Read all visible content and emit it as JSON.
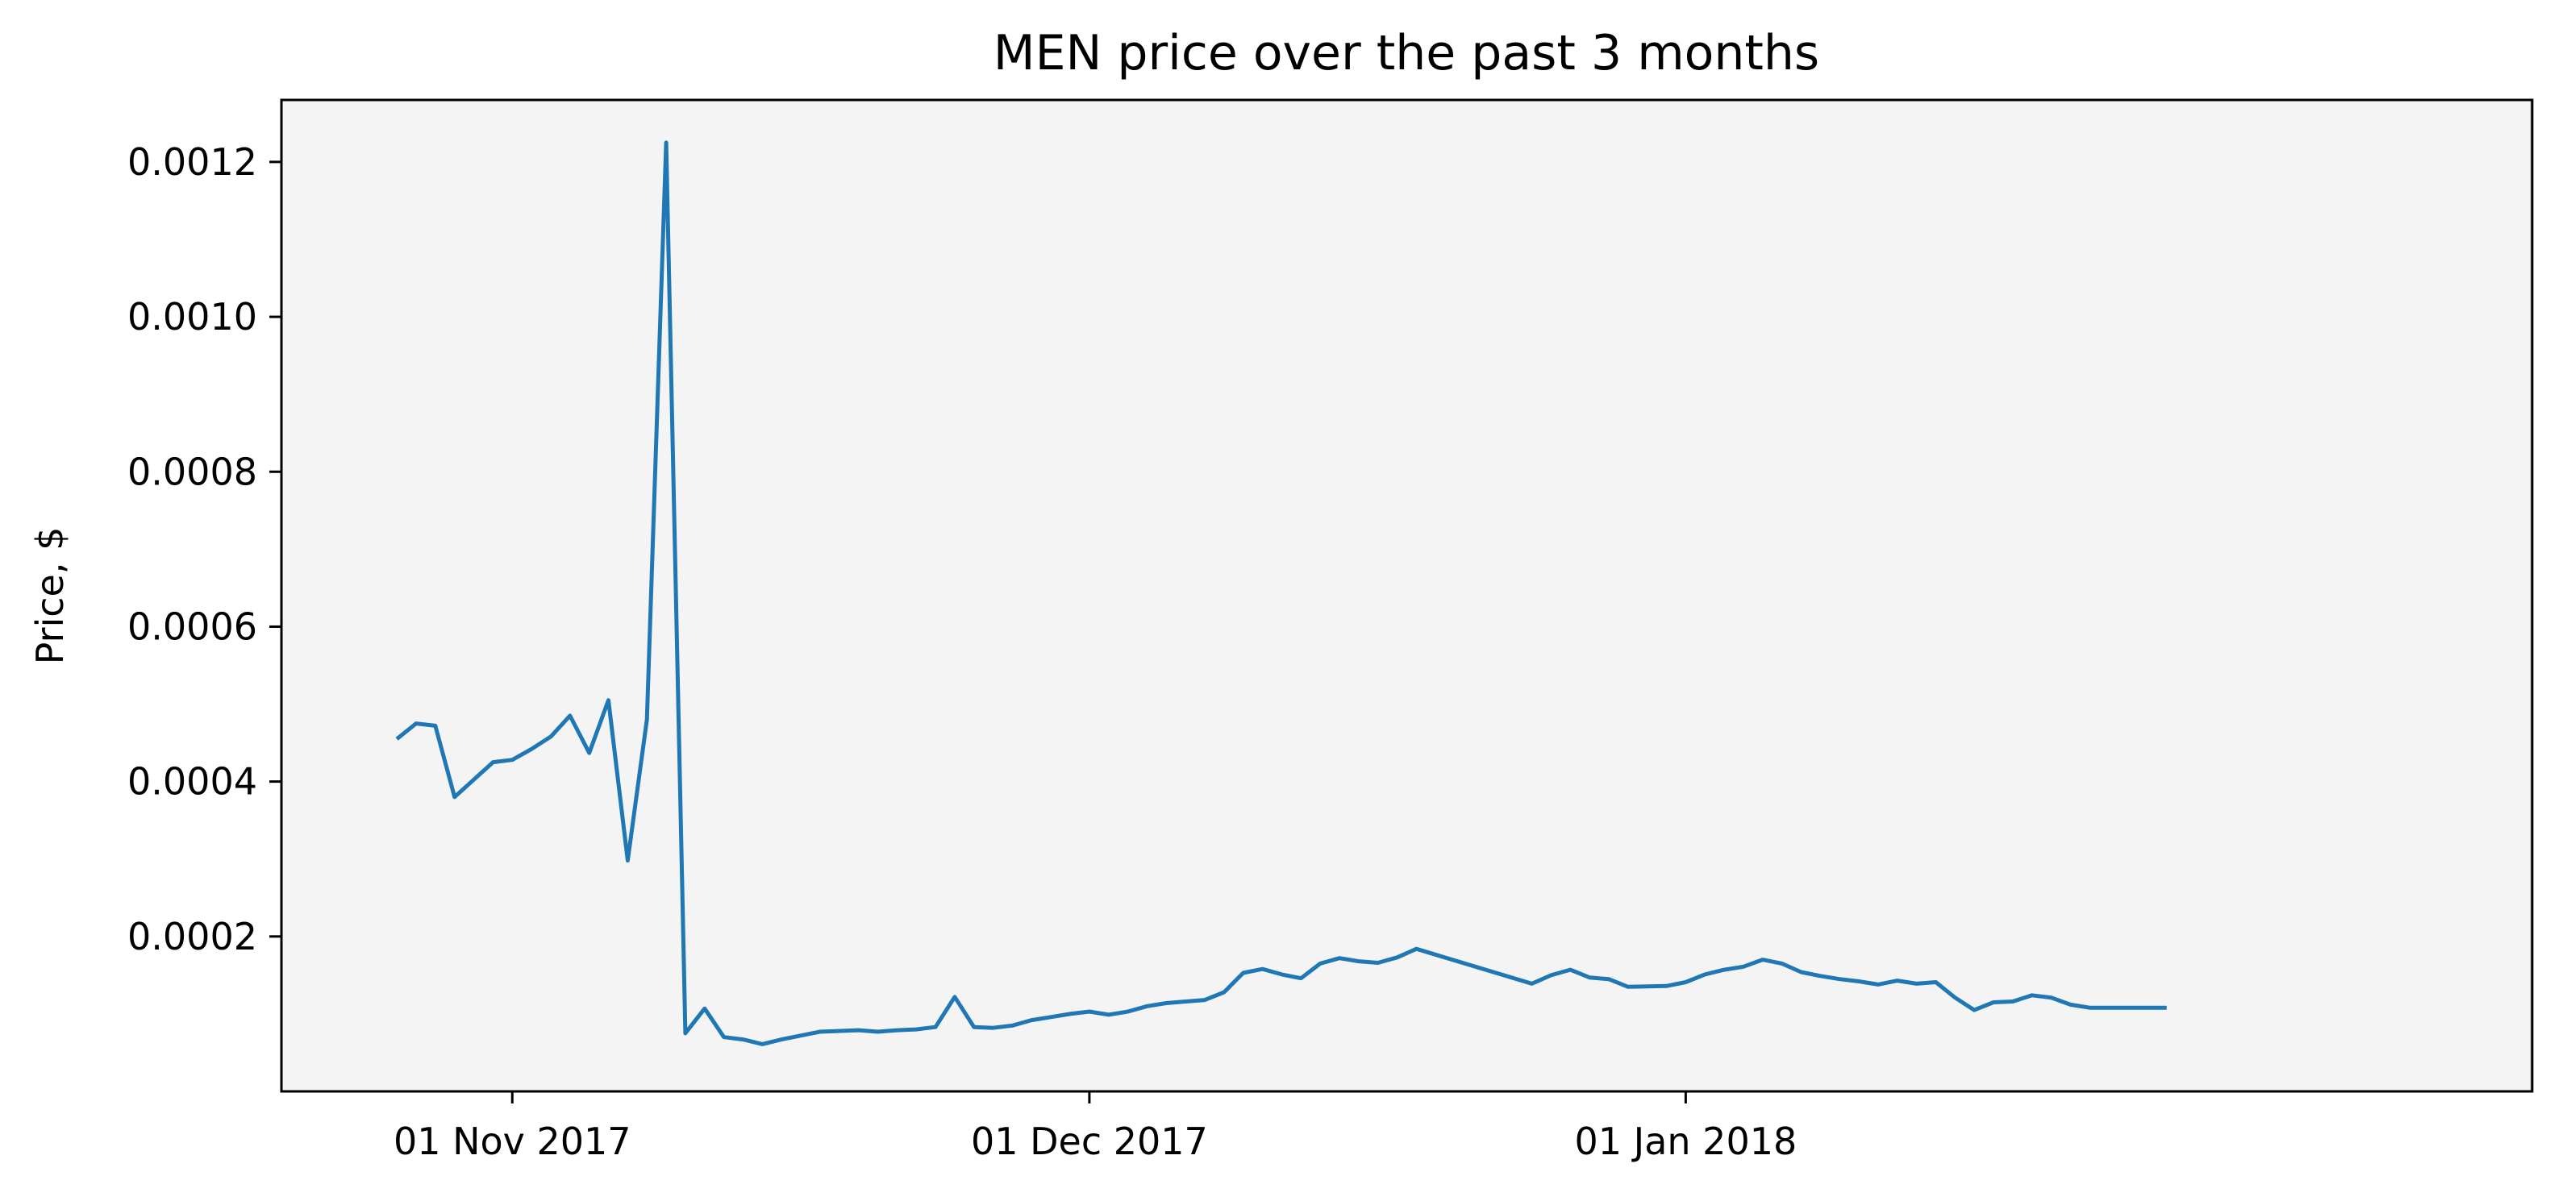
{
  "chart_data": {
    "type": "line",
    "title": "MEN price over the past 3 months",
    "xlabel": "",
    "ylabel": "Price, $",
    "xlim": [
      "2017-10-20",
      "2018-02-14"
    ],
    "ylim": [
      0,
      0.00128
    ],
    "grid": false,
    "legend": "none",
    "colors": {
      "line": "#1f77b4",
      "plot_background": "#f4f4f4",
      "axes": "#000000"
    },
    "x_ticks": [
      {
        "date": "2017-11-01",
        "label": "01 Nov 2017"
      },
      {
        "date": "2017-12-01",
        "label": "01 Dec 2017"
      },
      {
        "date": "2018-01-01",
        "label": "01 Jan 2018"
      }
    ],
    "y_ticks": [
      {
        "value": 0.0002,
        "label": "0.0002"
      },
      {
        "value": 0.0004,
        "label": "0.0004"
      },
      {
        "value": 0.0006,
        "label": "0.0006"
      },
      {
        "value": 0.0008,
        "label": "0.0008"
      },
      {
        "value": 0.001,
        "label": "0.0010"
      },
      {
        "value": 0.0012,
        "label": "0.0012"
      }
    ],
    "series": [
      {
        "x": [
          "2017-10-26",
          "2017-10-27",
          "2017-10-28",
          "2017-10-29",
          "2017-10-31",
          "2017-11-01",
          "2017-11-02",
          "2017-11-03",
          "2017-11-04",
          "2017-11-05",
          "2017-11-06",
          "2017-11-07",
          "2017-11-08",
          "2017-11-09",
          "2017-11-10",
          "2017-11-11",
          "2017-11-12",
          "2017-11-13",
          "2017-11-14",
          "2017-11-15",
          "2017-11-17",
          "2017-11-19",
          "2017-11-20",
          "2017-11-21",
          "2017-11-22",
          "2017-11-23",
          "2017-11-24",
          "2017-11-25",
          "2017-11-26",
          "2017-11-27",
          "2017-11-28",
          "2017-11-29",
          "2017-11-30",
          "2017-12-01",
          "2017-12-02",
          "2017-12-03",
          "2017-12-04",
          "2017-12-05",
          "2017-12-06",
          "2017-12-07",
          "2017-12-08",
          "2017-12-09",
          "2017-12-10",
          "2017-12-11",
          "2017-12-12",
          "2017-12-13",
          "2017-12-14",
          "2017-12-15",
          "2017-12-16",
          "2017-12-17",
          "2017-12-18",
          "2017-12-24",
          "2017-12-25",
          "2017-12-26",
          "2017-12-27",
          "2017-12-28",
          "2017-12-29",
          "2017-12-31",
          "2018-01-01",
          "2018-01-02",
          "2018-01-03",
          "2018-01-04",
          "2018-01-05",
          "2018-01-06",
          "2018-01-07",
          "2018-01-08",
          "2018-01-09",
          "2018-01-10",
          "2018-01-11",
          "2018-01-12",
          "2018-01-13",
          "2018-01-14",
          "2018-01-15",
          "2018-01-16",
          "2018-01-17",
          "2018-01-18",
          "2018-01-19",
          "2018-01-20",
          "2018-01-21",
          "2018-01-22",
          "2018-01-23",
          "2018-01-24",
          "2018-01-25",
          "2018-01-26"
        ],
        "y": [
          0.000455,
          0.000475,
          0.000472,
          0.00038,
          0.000425,
          0.000428,
          0.000442,
          0.000458,
          0.000485,
          0.000437,
          0.000505,
          0.000298,
          0.00048,
          0.001225,
          7.5e-05,
          0.000107,
          7e-05,
          6.7e-05,
          6.1e-05,
          6.7e-05,
          7.7e-05,
          7.9e-05,
          7.7e-05,
          7.9e-05,
          8e-05,
          8.3e-05,
          0.000122,
          8.3e-05,
          8.2e-05,
          8.5e-05,
          9.2e-05,
          9.6e-05,
          0.0001,
          0.000103,
          9.9e-05,
          0.000103,
          0.00011,
          0.000114,
          0.000116,
          0.000118,
          0.000128,
          0.000153,
          0.000158,
          0.000151,
          0.000146,
          0.000165,
          0.000172,
          0.000168,
          0.000166,
          0.000173,
          0.000184,
          0.000139,
          0.00015,
          0.000157,
          0.000147,
          0.000145,
          0.000135,
          0.000136,
          0.000141,
          0.000151,
          0.000157,
          0.000161,
          0.00017,
          0.000165,
          0.000154,
          0.000149,
          0.000145,
          0.000142,
          0.000138,
          0.000143,
          0.000139,
          0.000141,
          0.000121,
          0.000105,
          0.000115,
          0.000116,
          0.000124,
          0.000121,
          0.000112,
          0.000108,
          0.000108,
          0.000108,
          0.000108,
          0.000108
        ]
      }
    ]
  }
}
